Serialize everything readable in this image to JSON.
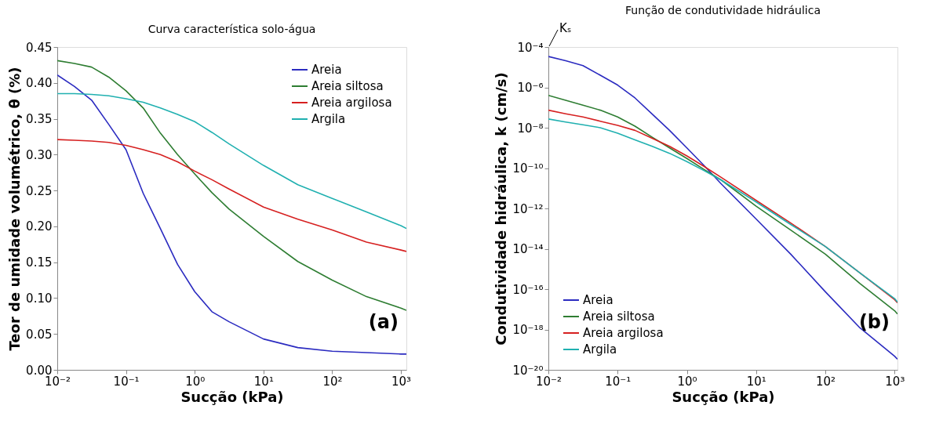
{
  "chart_data": [
    {
      "type": "line",
      "title": "Curva característica solo-água",
      "xlabel": "Sucção (kPa)",
      "ylabel": "Teor de umidade volumétrico, θ (%)",
      "x": [
        0.01,
        0.0178,
        0.0316,
        0.0562,
        0.1,
        0.178,
        0.316,
        0.562,
        1,
        1.78,
        3.16,
        10,
        31.6,
        100,
        316,
        1000,
        1200
      ],
      "series": [
        {
          "name": "Areia",
          "color": "#2b2bc0",
          "values": [
            0.411,
            0.395,
            0.376,
            0.342,
            0.307,
            0.246,
            0.197,
            0.147,
            0.109,
            0.081,
            0.067,
            0.043,
            0.031,
            0.026,
            0.024,
            0.022,
            0.022
          ]
        },
        {
          "name": "Areia siltosa",
          "color": "#2e7d32",
          "values": [
            0.431,
            0.427,
            0.422,
            0.408,
            0.389,
            0.365,
            0.33,
            0.3,
            0.273,
            0.247,
            0.224,
            0.186,
            0.151,
            0.125,
            0.102,
            0.086,
            0.083
          ]
        },
        {
          "name": "Areia argilosa",
          "color": "#d62020",
          "values": [
            0.321,
            0.32,
            0.319,
            0.317,
            0.313,
            0.307,
            0.3,
            0.29,
            0.277,
            0.265,
            0.252,
            0.227,
            0.21,
            0.195,
            0.178,
            0.167,
            0.165
          ]
        },
        {
          "name": "Argila",
          "color": "#20b0b0",
          "values": [
            0.385,
            0.385,
            0.384,
            0.382,
            0.378,
            0.373,
            0.365,
            0.356,
            0.346,
            0.331,
            0.315,
            0.285,
            0.258,
            0.239,
            0.22,
            0.201,
            0.197
          ]
        }
      ],
      "log": "x",
      "xlim": [
        0.01,
        1200
      ],
      "xticks": [
        {
          "value": 0.01,
          "label": "10⁻²"
        },
        {
          "value": 0.1,
          "label": "10⁻¹"
        },
        {
          "value": 1,
          "label": "10⁰"
        },
        {
          "value": 10,
          "label": "10¹"
        },
        {
          "value": 100,
          "label": "10²"
        },
        {
          "value": 1000,
          "label": "10³"
        }
      ],
      "ylim": [
        0,
        0.45
      ],
      "yticks": [
        {
          "value": 0,
          "label": "0.00"
        },
        0.05,
        {
          "value": 0.1,
          "label": "0.10"
        },
        0.15,
        {
          "value": 0.2,
          "label": "0.20"
        },
        0.25,
        {
          "value": 0.3,
          "label": "0.30"
        },
        0.35,
        {
          "value": 0.4,
          "label": "0.40"
        },
        0.45
      ],
      "grid": false,
      "legend": "top right",
      "marker": "none",
      "line_style": "solid",
      "annotations": [
        "(a)"
      ]
    },
    {
      "type": "line",
      "title": "Função de condutividade hidráulica",
      "xlabel": "Sucção (kPa)",
      "ylabel": "Condutividade hidráulica, k (cm/s)",
      "x": [
        0.01,
        0.0178,
        0.0316,
        0.0562,
        0.1,
        0.178,
        0.316,
        0.562,
        1,
        1.78,
        3.16,
        10,
        31.6,
        100,
        316,
        1000,
        1100
      ],
      "series": [
        {
          "name": "Areia",
          "color": "#2b2bc0",
          "values": [
            3.4e-05,
            2.1e-05,
            1.2e-05,
            4e-06,
            1.3e-06,
            3e-07,
            4.7e-08,
            7.4e-09,
            1e-09,
            1.3e-10,
            1.6e-11,
            3e-13,
            5.4e-15,
            7.4e-17,
            1.2e-18,
            4.7e-20,
            3.4e-20
          ]
        },
        {
          "name": "Areia siltosa",
          "color": "#2e7d32",
          "values": [
            4e-07,
            2.3e-07,
            1.3e-07,
            7.4e-08,
            3.4e-08,
            1.2e-08,
            3.4e-09,
            1e-09,
            3e-10,
            8.5e-11,
            2.5e-11,
            1.3e-12,
            8.5e-14,
            5.4e-15,
            1.9e-16,
            8.5e-18,
            5.9e-18
          ]
        },
        {
          "name": "Areia argilosa",
          "color": "#d62020",
          "values": [
            7.4e-08,
            4.9e-08,
            3.4e-08,
            2.1e-08,
            1.3e-08,
            7.4e-09,
            3e-09,
            1.2e-09,
            4e-10,
            1.2e-10,
            3.4e-11,
            2.5e-12,
            1.9e-13,
            1.3e-14,
            6.3e-16,
            3e-17,
            2.1e-17
          ]
        },
        {
          "name": "Argila",
          "color": "#20b0b0",
          "values": [
            2.7e-08,
            1.9e-08,
            1.4e-08,
            1e-08,
            5.4e-09,
            2.5e-09,
            1.2e-09,
            5.4e-10,
            2.1e-10,
            7.4e-11,
            2.5e-11,
            2.1e-12,
            1.6e-13,
            1.3e-14,
            6.3e-16,
            3.4e-17,
            2.3e-17
          ]
        }
      ],
      "log": "xy",
      "xlim": [
        0.01,
        1100
      ],
      "xticks": [
        {
          "value": 0.01,
          "label": "10⁻²"
        },
        {
          "value": 0.1,
          "label": "10⁻¹"
        },
        {
          "value": 1,
          "label": "10⁰"
        },
        {
          "value": 10,
          "label": "10¹"
        },
        {
          "value": 100,
          "label": "10²"
        },
        {
          "value": 1000,
          "label": "10³"
        }
      ],
      "ylim": [
        1e-20,
        0.0001
      ],
      "yticks": [
        {
          "value": 0.0001,
          "label": "10⁻⁴"
        },
        {
          "value": 1e-06,
          "label": "10⁻⁶"
        },
        {
          "value": 1e-08,
          "label": "10⁻⁸"
        },
        {
          "value": 1e-10,
          "label": "10⁻¹⁰"
        },
        {
          "value": 1e-12,
          "label": "10⁻¹²"
        },
        {
          "value": 1e-14,
          "label": "10⁻¹⁴"
        },
        {
          "value": 1e-16,
          "label": "10⁻¹⁶"
        },
        {
          "value": 1e-18,
          "label": "10⁻¹⁸"
        },
        {
          "value": 1e-20,
          "label": "10⁻²⁰"
        }
      ],
      "grid": false,
      "legend": "bottom left",
      "marker": "none",
      "line_style": "solid",
      "annotations": [
        "Kₛ",
        "(b)"
      ]
    }
  ]
}
